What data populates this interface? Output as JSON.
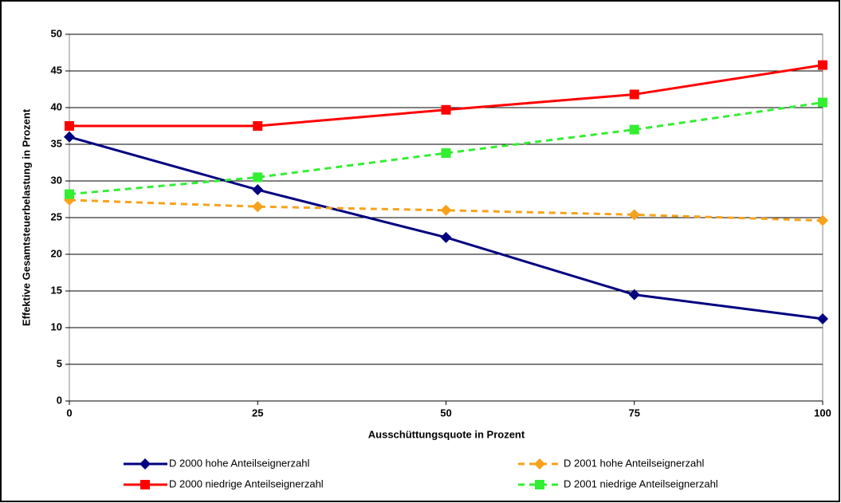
{
  "chart_data": {
    "type": "line",
    "x_label": "Ausschüttungsquote in Prozent",
    "y_label": "Effektive Gesamtsteuerbelastung in Prozent",
    "x": [
      0,
      25,
      50,
      75,
      100
    ],
    "xlim": [
      0,
      100
    ],
    "xticks": [
      0,
      25,
      50,
      75,
      100
    ],
    "ylim": [
      0,
      50
    ],
    "yticks": [
      0,
      5,
      10,
      15,
      20,
      25,
      30,
      35,
      40,
      45,
      50
    ],
    "grid": true,
    "series": [
      {
        "name": "D 2000 hohe Anteilseignerzahl",
        "color": "#000080",
        "marker": "diamond",
        "dashed": false,
        "values": [
          36.0,
          28.8,
          22.3,
          14.5,
          11.2
        ]
      },
      {
        "name": "D 2001 hohe Anteilseignerzahl",
        "color": "#f7a21b",
        "marker": "diamond",
        "dashed": true,
        "values": [
          27.4,
          26.5,
          26.0,
          25.4,
          24.6
        ]
      },
      {
        "name": "D 2000 niedrige Anteilseignerzahl",
        "color": "#ff0000",
        "marker": "square",
        "dashed": false,
        "values": [
          37.5,
          37.5,
          39.7,
          41.8,
          45.8
        ]
      },
      {
        "name": "D 2001 niedrige Anteilseignerzahl",
        "color": "#33ee33",
        "marker": "square",
        "dashed": true,
        "values": [
          28.2,
          30.5,
          33.8,
          37.0,
          40.7
        ]
      }
    ]
  }
}
